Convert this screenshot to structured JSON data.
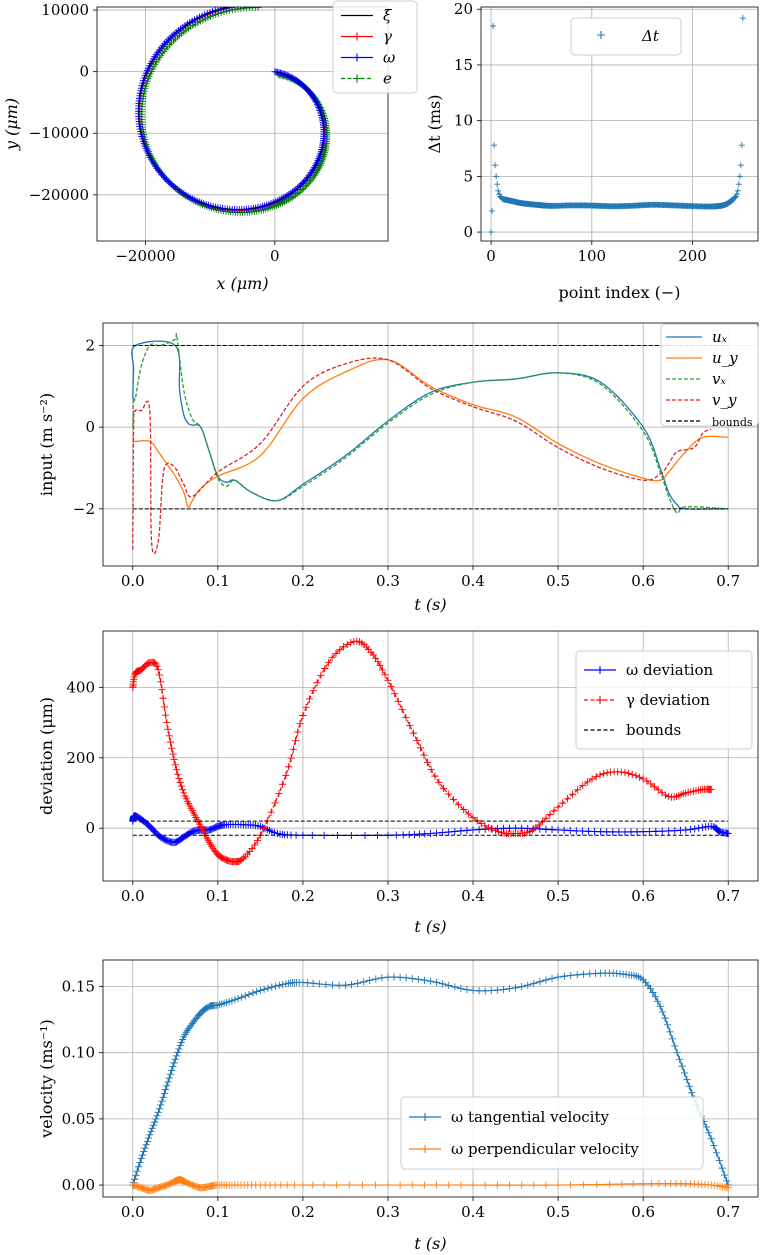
{
  "colors": {
    "xi": "#000000",
    "gamma": "#ff0000",
    "omega": "#0000ff",
    "e": "#008000",
    "blue": "#1f77b4",
    "orange": "#ff7f0e",
    "green": "#2ca02c",
    "red": "#d62728",
    "grid": "#b0b0b0"
  },
  "chart_data": [
    {
      "type": "line",
      "xlabel": "x (μm)",
      "ylabel": "y (μm)",
      "xlim": [
        -27500,
        17500
      ],
      "ylim": [
        -27500,
        10500
      ],
      "xticks": [
        -20000,
        0
      ],
      "xtick_labels": [
        "−20000",
        "0"
      ],
      "yticks": [
        10000,
        0,
        -10000,
        -20000
      ],
      "ytick_labels": [
        "10000",
        "0",
        "−10000",
        "−20000"
      ],
      "grid": true,
      "legend_position": "top-right",
      "spiral": {
        "turns": 0.75,
        "start_x": 0,
        "start_y": 0,
        "end_x": 0,
        "end_y": 10000,
        "center_x": -4000,
        "center_y": -7500
      },
      "series": [
        {
          "name": "ξ",
          "key": "xi",
          "style": "solid",
          "marker": "none"
        },
        {
          "name": "γ",
          "key": "gamma",
          "style": "solid",
          "marker": "plus"
        },
        {
          "name": "ω",
          "key": "omega",
          "style": "solid",
          "marker": "plus"
        },
        {
          "name": "e",
          "key": "e",
          "style": "dashed",
          "marker": "plus"
        }
      ]
    },
    {
      "type": "scatter",
      "xlabel": "point index (−)",
      "ylabel": "Δt (ms)",
      "xlim": [
        -10,
        265
      ],
      "ylim": [
        -0.8,
        20.2
      ],
      "xticks": [
        0,
        100,
        200
      ],
      "yticks": [
        0,
        5,
        10,
        15,
        20
      ],
      "grid": true,
      "legend_position": "top-center",
      "series": [
        {
          "name": "Δt",
          "key": "blue",
          "marker": "plus",
          "points": [
            [
              0,
              0.0
            ],
            [
              1,
              1.9
            ],
            [
              2,
              18.5
            ],
            [
              3,
              7.8
            ],
            [
              4,
              6.0
            ],
            [
              5,
              5.0
            ],
            [
              6,
              4.3
            ],
            [
              7,
              3.7
            ],
            [
              8,
              3.4
            ],
            [
              9,
              3.2
            ],
            [
              10,
              3.1
            ],
            [
              11,
              3.0
            ],
            [
              241,
              3.0
            ],
            [
              242,
              3.1
            ],
            [
              243,
              3.2
            ],
            [
              244,
              3.4
            ],
            [
              245,
              3.7
            ],
            [
              246,
              4.3
            ],
            [
              247,
              5.0
            ],
            [
              248,
              6.0
            ],
            [
              249,
              7.8
            ],
            [
              250,
              19.2
            ]
          ],
          "bulk": [
            [
              12,
              2.95
            ],
            [
              20,
              2.8
            ],
            [
              30,
              2.6
            ],
            [
              45,
              2.45
            ],
            [
              60,
              2.35
            ],
            [
              80,
              2.4
            ],
            [
              100,
              2.38
            ],
            [
              120,
              2.32
            ],
            [
              140,
              2.36
            ],
            [
              160,
              2.45
            ],
            [
              180,
              2.4
            ],
            [
              200,
              2.33
            ],
            [
              220,
              2.3
            ],
            [
              232,
              2.45
            ],
            [
              240,
              2.9
            ]
          ]
        }
      ]
    },
    {
      "type": "line",
      "xlabel": "t (s)",
      "ylabel": "input (m s⁻²)",
      "xlim": [
        -0.035,
        0.735
      ],
      "ylim": [
        -3.4,
        2.55
      ],
      "xticks": [
        0.0,
        0.1,
        0.2,
        0.3,
        0.4,
        0.5,
        0.6,
        0.7
      ],
      "yticks": [
        -2,
        0,
        2
      ],
      "ytick_labels": [
        "−2",
        "0",
        "2"
      ],
      "grid": true,
      "legend_position": "top-right",
      "series": [
        {
          "name": "uₓ",
          "key": "blue",
          "style": "solid",
          "x": [
            0,
            0.001,
            0.003,
            0.05,
            0.055,
            0.06,
            0.065,
            0.07,
            0.08,
            0.09,
            0.1,
            0.11,
            0.12,
            0.14,
            0.17,
            0.2,
            0.25,
            0.3,
            0.35,
            0.4,
            0.45,
            0.5,
            0.55,
            0.6,
            0.62,
            0.63,
            0.64,
            0.65,
            0.7
          ],
          "y": [
            0.7,
            1.4,
            2.0,
            2.0,
            0.9,
            0.3,
            0.1,
            0.05,
            0.0,
            -0.6,
            -1.2,
            -1.35,
            -1.3,
            -1.6,
            -1.8,
            -1.4,
            -0.7,
            0.15,
            0.85,
            1.1,
            1.18,
            1.33,
            1.1,
            0.0,
            -1.0,
            -1.6,
            -1.9,
            -2.0,
            -2.0
          ]
        },
        {
          "name": "u_y",
          "key": "orange",
          "style": "solid",
          "x": [
            0,
            0.001,
            0.003,
            0.02,
            0.03,
            0.04,
            0.05,
            0.06,
            0.065,
            0.07,
            0.08,
            0.1,
            0.15,
            0.2,
            0.25,
            0.3,
            0.35,
            0.4,
            0.45,
            0.5,
            0.55,
            0.6,
            0.62,
            0.63,
            0.65,
            0.67,
            0.7
          ],
          "y": [
            -0.2,
            -0.35,
            -0.35,
            -0.35,
            -0.6,
            -0.9,
            -1.2,
            -1.6,
            -1.95,
            -1.8,
            -1.5,
            -1.2,
            -0.7,
            0.7,
            1.35,
            1.65,
            1.0,
            0.55,
            0.25,
            -0.4,
            -0.9,
            -1.25,
            -1.3,
            -1.1,
            -0.6,
            -0.25,
            -0.25
          ]
        },
        {
          "name": "vₓ",
          "key": "green",
          "style": "dashed",
          "x": [
            0,
            0.001,
            0.003,
            0.01,
            0.02,
            0.03,
            0.04,
            0.05,
            0.052,
            0.06,
            0.07,
            0.08,
            0.09,
            0.1,
            0.11,
            0.12,
            0.14,
            0.17,
            0.2,
            0.25,
            0.3,
            0.35,
            0.4,
            0.45,
            0.5,
            0.55,
            0.6,
            0.62,
            0.63,
            0.64,
            0.65,
            0.7
          ],
          "y": [
            0.0,
            0.7,
            0.7,
            1.5,
            2.0,
            2.0,
            2.05,
            2.15,
            2.2,
            0.9,
            0.2,
            0.0,
            -0.6,
            -1.25,
            -1.45,
            -1.3,
            -1.6,
            -1.8,
            -1.45,
            -0.75,
            0.1,
            0.8,
            1.1,
            1.18,
            1.33,
            1.05,
            -0.1,
            -1.1,
            -1.7,
            -2.1,
            -1.95,
            -2.0
          ]
        },
        {
          "name": "v_y",
          "key": "red",
          "style": "dashed",
          "x": [
            0,
            0.001,
            0.003,
            0.01,
            0.02,
            0.022,
            0.03,
            0.035,
            0.04,
            0.05,
            0.06,
            0.07,
            0.1,
            0.15,
            0.2,
            0.25,
            0.3,
            0.35,
            0.4,
            0.45,
            0.5,
            0.55,
            0.6,
            0.62,
            0.63,
            0.64,
            0.66,
            0.67,
            0.68
          ],
          "y": [
            -3.0,
            0.0,
            0.4,
            0.4,
            0.4,
            -2.8,
            -2.8,
            -1.3,
            -0.9,
            -1.0,
            -1.4,
            -1.7,
            -1.1,
            -0.4,
            1.0,
            1.55,
            1.65,
            0.95,
            0.5,
            0.15,
            -0.5,
            -1.0,
            -1.3,
            -1.15,
            -0.9,
            -0.6,
            -0.5,
            -0.15,
            -0.05
          ]
        },
        {
          "name": "bounds",
          "key": "xi",
          "style": "dashed",
          "bounds": [
            2,
            -2
          ],
          "x_range": [
            0,
            0.7
          ]
        }
      ]
    },
    {
      "type": "line",
      "xlabel": "t (s)",
      "ylabel": "deviation (μm)",
      "xlim": [
        -0.035,
        0.735
      ],
      "ylim": [
        -150,
        560
      ],
      "xticks": [
        0.0,
        0.1,
        0.2,
        0.3,
        0.4,
        0.5,
        0.6,
        0.7
      ],
      "yticks": [
        0,
        200,
        400
      ],
      "grid": true,
      "legend_position": "top-right",
      "series": [
        {
          "name": "ω deviation",
          "key": "omega",
          "style": "solid",
          "marker": "plus",
          "x": [
            0,
            0.002,
            0.01,
            0.02,
            0.03,
            0.04,
            0.05,
            0.06,
            0.07,
            0.08,
            0.09,
            0.1,
            0.11,
            0.13,
            0.15,
            0.17,
            0.2,
            0.3,
            0.35,
            0.4,
            0.45,
            0.5,
            0.55,
            0.6,
            0.65,
            0.68,
            0.69,
            0.7
          ],
          "y": [
            20,
            35,
            25,
            5,
            -20,
            -35,
            -40,
            -25,
            -10,
            -5,
            -5,
            5,
            10,
            10,
            5,
            -15,
            -20,
            -20,
            -15,
            -5,
            0,
            -5,
            -10,
            -10,
            -5,
            5,
            -10,
            -15
          ]
        },
        {
          "name": "γ deviation",
          "key": "gamma",
          "style": "dashed",
          "marker": "plus",
          "x": [
            0,
            0.003,
            0.01,
            0.02,
            0.03,
            0.04,
            0.05,
            0.06,
            0.07,
            0.08,
            0.09,
            0.1,
            0.11,
            0.12,
            0.13,
            0.15,
            0.18,
            0.2,
            0.23,
            0.26,
            0.28,
            0.3,
            0.33,
            0.36,
            0.4,
            0.43,
            0.45,
            0.47,
            0.5,
            0.54,
            0.57,
            0.6,
            0.63,
            0.65,
            0.67,
            0.68
          ],
          "y": [
            400,
            440,
            450,
            470,
            450,
            300,
            180,
            100,
            50,
            5,
            -40,
            -75,
            -90,
            -95,
            -85,
            -20,
            150,
            320,
            470,
            530,
            500,
            420,
            270,
            130,
            30,
            -10,
            -15,
            -5,
            60,
            140,
            160,
            140,
            90,
            100,
            110,
            110
          ]
        },
        {
          "name": "bounds",
          "key": "xi",
          "style": "dashed",
          "bounds": [
            20,
            -20
          ],
          "x_range": [
            0,
            0.7
          ]
        }
      ]
    },
    {
      "type": "line",
      "xlabel": "t (s)",
      "ylabel": "velocity (ms⁻¹)",
      "xlim": [
        -0.035,
        0.735
      ],
      "ylim": [
        -0.009,
        0.17
      ],
      "xticks": [
        0.0,
        0.1,
        0.2,
        0.3,
        0.4,
        0.5,
        0.6,
        0.7
      ],
      "yticks": [
        0.0,
        0.05,
        0.1,
        0.15
      ],
      "ytick_labels": [
        "0.00",
        "0.05",
        "0.10",
        "0.15"
      ],
      "grid": true,
      "legend_position": "lower-right",
      "series": [
        {
          "name": "ω tangential velocity",
          "key": "blue",
          "style": "solid",
          "marker": "plus",
          "x": [
            0,
            0.01,
            0.02,
            0.03,
            0.04,
            0.05,
            0.06,
            0.07,
            0.08,
            0.09,
            0.1,
            0.12,
            0.15,
            0.18,
            0.2,
            0.25,
            0.3,
            0.35,
            0.4,
            0.45,
            0.5,
            0.55,
            0.58,
            0.6,
            0.62,
            0.64,
            0.66,
            0.68,
            0.7
          ],
          "y": [
            0.0,
            0.02,
            0.038,
            0.055,
            0.075,
            0.095,
            0.112,
            0.122,
            0.13,
            0.135,
            0.136,
            0.14,
            0.147,
            0.152,
            0.153,
            0.151,
            0.157,
            0.154,
            0.147,
            0.149,
            0.157,
            0.16,
            0.159,
            0.155,
            0.135,
            0.1,
            0.065,
            0.035,
            0.0
          ]
        },
        {
          "name": "ω perpendicular velocity",
          "key": "orange",
          "style": "solid",
          "marker": "plus",
          "x": [
            0,
            0.01,
            0.02,
            0.03,
            0.04,
            0.05,
            0.055,
            0.06,
            0.07,
            0.08,
            0.09,
            0.1,
            0.12,
            0.15,
            0.2,
            0.3,
            0.4,
            0.5,
            0.6,
            0.65,
            0.68,
            0.7
          ],
          "y": [
            0.0,
            -0.002,
            -0.004,
            -0.002,
            0.0,
            0.003,
            0.004,
            0.003,
            0.0,
            -0.002,
            -0.001,
            0.0,
            0.0,
            0.0,
            0.0,
            0.0,
            0.0,
            0.0,
            0.001,
            0.001,
            0.0,
            -0.002
          ]
        }
      ]
    }
  ]
}
